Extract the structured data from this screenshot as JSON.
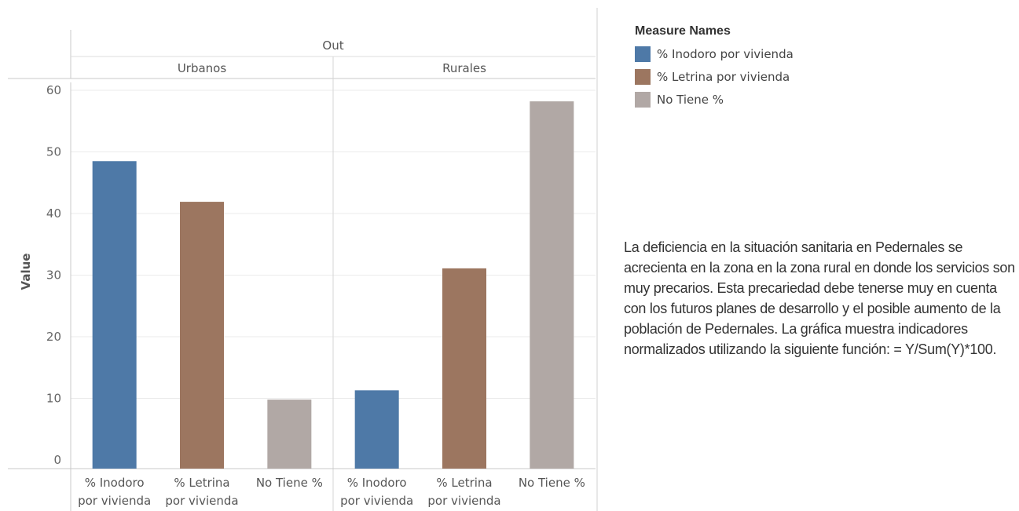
{
  "chart_data": {
    "type": "bar",
    "column_header": "Out",
    "panels": [
      "Urbanos",
      "Rurales"
    ],
    "categories": [
      "% Inodoro por vivienda",
      "% Letrina por vivienda",
      "No Tiene %"
    ],
    "category_lines": [
      [
        "% Inodoro",
        "por vivienda"
      ],
      [
        "% Letrina",
        "por vivienda"
      ],
      [
        "No Tiene %"
      ]
    ],
    "values": {
      "Urbanos": [
        48.5,
        41.9,
        9.8
      ],
      "Rurales": [
        11.3,
        31.1,
        58.2
      ]
    },
    "ylabel": "Value",
    "ylim": [
      0,
      60
    ],
    "yticks": [
      0,
      10,
      20,
      30,
      40,
      50,
      60
    ],
    "grid": true,
    "colors": [
      "#4e79a7",
      "#9c7660",
      "#b1a8a5"
    ],
    "legend": {
      "title": "Measure Names",
      "placement": "top-right",
      "items": [
        "% Inodoro por vivienda",
        "% Letrina por vivienda",
        "No Tiene %"
      ]
    }
  },
  "caption": "La deficiencia en la situación sanitaria en Pedernales se acrecienta en la zona en la zona rural en donde los servicios son muy precarios.  Esta precariedad debe tenerse muy en cuenta con los futuros planes de desarrollo y el posible aumento de la población de Pedernales. La gráfica muestra indicadores normalizados utilizando la siguiente función: = Y/Sum(Y)*100."
}
